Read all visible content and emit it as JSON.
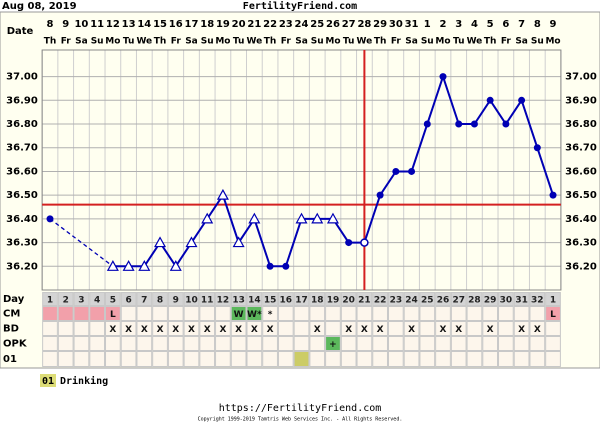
{
  "header": {
    "date": "Aug 08, 2019",
    "site": "FertilityFriend.com"
  },
  "chart_data": {
    "type": "line",
    "x_label": "Date",
    "dates": [
      8,
      9,
      10,
      11,
      12,
      13,
      14,
      15,
      16,
      17,
      18,
      19,
      20,
      21,
      22,
      23,
      24,
      25,
      26,
      27,
      28,
      29,
      30,
      31,
      1,
      2,
      3,
      4,
      5,
      6,
      7,
      8,
      9
    ],
    "weekdays": [
      "Th",
      "Fr",
      "Sa",
      "Su",
      "Mo",
      "Tu",
      "We",
      "Th",
      "Fr",
      "Sa",
      "Su",
      "Mo",
      "Tu",
      "We",
      "Th",
      "Fr",
      "Sa",
      "Su",
      "Mo",
      "Tu",
      "We",
      "Th",
      "Fr",
      "Sa",
      "Su",
      "Mo",
      "Tu",
      "We",
      "Th",
      "Fr",
      "Sa",
      "Su",
      "Mo"
    ],
    "series": [
      {
        "color": "#0000b4",
        "values": [
          36.4,
          null,
          null,
          null,
          36.2,
          36.2,
          36.2,
          36.3,
          36.2,
          36.3,
          36.4,
          36.5,
          36.3,
          36.4,
          36.2,
          36.2,
          36.4,
          36.4,
          36.4,
          36.3,
          36.3,
          36.5,
          36.6,
          36.6,
          36.8,
          37.0,
          36.8,
          36.8,
          36.9,
          36.8,
          36.9,
          36.7,
          36.5
        ],
        "markers": [
          "circle",
          null,
          null,
          null,
          "triangle",
          "triangle",
          "triangle",
          "triangle",
          "triangle",
          "triangle",
          "triangle",
          "triangle",
          "triangle",
          "triangle",
          "circle",
          "circle",
          "triangle",
          "triangle",
          "triangle",
          "circle",
          "open-circle",
          "circle",
          "circle",
          "circle",
          "circle",
          "circle",
          "circle",
          "circle",
          "circle",
          "circle",
          "circle",
          "circle",
          "circle"
        ]
      }
    ],
    "ylim": [
      36.1,
      37.07
    ],
    "yticks": [
      {
        "value": 36.2,
        "label": "36.20"
      },
      {
        "value": 36.3,
        "label": "36.30"
      },
      {
        "value": 36.4,
        "label": "36.40"
      },
      {
        "value": 36.5,
        "label": "36.50"
      },
      {
        "value": 36.6,
        "label": "36.60"
      },
      {
        "value": 36.7,
        "label": "36.70"
      },
      {
        "value": 36.8,
        "label": "36.80"
      },
      {
        "value": 36.9,
        "label": "36.90"
      },
      {
        "value": 37.0,
        "label": "37.00"
      }
    ],
    "coverline": 36.46,
    "coverline_color": "#d42020",
    "ovulation_index": 20,
    "grid": true
  },
  "rows": [
    {
      "label": "Day",
      "cells": [
        1,
        2,
        3,
        4,
        5,
        6,
        7,
        8,
        9,
        10,
        11,
        12,
        13,
        14,
        15,
        16,
        17,
        18,
        19,
        20,
        21,
        22,
        23,
        24,
        25,
        26,
        27,
        28,
        29,
        30,
        31,
        32,
        1
      ]
    },
    {
      "label": "CM",
      "cells": [
        null,
        null,
        null,
        null,
        "L",
        null,
        null,
        null,
        null,
        null,
        null,
        null,
        "W",
        "W*",
        "*",
        null,
        null,
        null,
        null,
        null,
        null,
        null,
        null,
        null,
        null,
        null,
        null,
        null,
        null,
        null,
        null,
        null,
        "L"
      ],
      "colors": [
        "#f2a0aa",
        "#f2a0aa",
        "#f2a0aa",
        "#f2a0aa",
        "#f2a0aa",
        null,
        null,
        null,
        null,
        null,
        null,
        null,
        "#5cb85c",
        "#5cb85c",
        null,
        null,
        null,
        null,
        null,
        null,
        null,
        null,
        null,
        null,
        null,
        null,
        null,
        null,
        null,
        null,
        null,
        null,
        "#f2a0aa"
      ]
    },
    {
      "label": "BD",
      "cells": [
        null,
        null,
        null,
        null,
        "X",
        "X",
        "X",
        "X",
        "X",
        "X",
        "X",
        "X",
        "X",
        "X",
        "X",
        null,
        null,
        "X",
        null,
        "X",
        "X",
        "X",
        null,
        "X",
        null,
        "X",
        "X",
        null,
        "X",
        null,
        "X",
        "X",
        null
      ]
    },
    {
      "label": "OPK",
      "cells": [
        null,
        null,
        null,
        null,
        null,
        null,
        null,
        null,
        null,
        null,
        null,
        null,
        null,
        null,
        null,
        null,
        null,
        null,
        "+",
        null,
        null,
        null,
        null,
        null,
        null,
        null,
        null,
        null,
        null,
        null,
        null,
        null,
        null
      ],
      "colors": [
        null,
        null,
        null,
        null,
        null,
        null,
        null,
        null,
        null,
        null,
        null,
        null,
        null,
        null,
        null,
        null,
        null,
        null,
        "#5cb85c",
        null,
        null,
        null,
        null,
        null,
        null,
        null,
        null,
        null,
        null,
        null,
        null,
        null,
        null
      ]
    },
    {
      "label": "01",
      "cells": [
        null,
        null,
        null,
        null,
        null,
        null,
        null,
        null,
        null,
        null,
        null,
        null,
        null,
        null,
        null,
        null,
        null,
        null,
        null,
        null,
        null,
        null,
        null,
        null,
        null,
        null,
        null,
        null,
        null,
        null,
        null,
        null,
        null
      ],
      "colors": [
        null,
        null,
        null,
        null,
        null,
        null,
        null,
        null,
        null,
        null,
        null,
        null,
        null,
        null,
        null,
        null,
        "#cccc66",
        null,
        null,
        null,
        null,
        null,
        null,
        null,
        null,
        null,
        null,
        null,
        null,
        null,
        null,
        null,
        null
      ]
    }
  ],
  "legend": {
    "code": "01",
    "text": "Drinking"
  },
  "footer": {
    "url": "https://FertilityFriend.com",
    "copyright": "Copyright 1999-2019 Tamtris Web Services Inc. - All Rights Reserved."
  }
}
